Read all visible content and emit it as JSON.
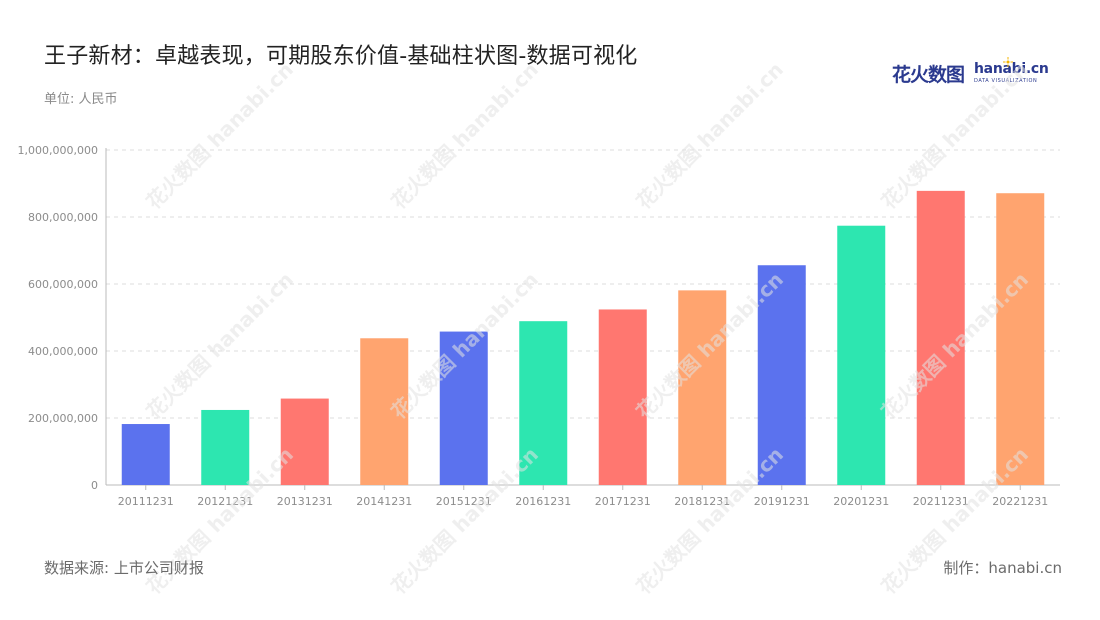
{
  "title": "王子新材：卓越表现，可期股东价值-基础柱状图-数据可视化",
  "unit_label": "单位: 人民币",
  "logo": {
    "cn": "花火数图",
    "en": "hanabi.cn",
    "sub": "DATA VISUALIZATION"
  },
  "source": "数据来源: 上市公司财报",
  "credit": "制作：hanabi.cn",
  "watermark": "花火数图 hanabi.cn",
  "colors": {
    "blue": "#5b72ee",
    "green": "#2de6b0",
    "red": "#ff7770",
    "orange": "#ffa46f",
    "accent": "#2b3a8f"
  },
  "chart_data": {
    "type": "bar",
    "title": "王子新材：卓越表现，可期股东价值-基础柱状图-数据可视化",
    "xlabel": "",
    "ylabel": "",
    "unit": "单位: 人民币",
    "categories": [
      "20111231",
      "20121231",
      "20131231",
      "20141231",
      "20151231",
      "20161231",
      "20171231",
      "20181231",
      "20191231",
      "20201231",
      "20211231",
      "20221231"
    ],
    "values": [
      182000000,
      224000000,
      258000000,
      438000000,
      458000000,
      489000000,
      524000000,
      581000000,
      656000000,
      774000000,
      878000000,
      871000000
    ],
    "bar_colors": [
      "#5b72ee",
      "#2de6b0",
      "#ff7770",
      "#ffa46f",
      "#5b72ee",
      "#2de6b0",
      "#ff7770",
      "#ffa46f",
      "#5b72ee",
      "#2de6b0",
      "#ff7770",
      "#ffa46f"
    ],
    "ylim": [
      0,
      1000000000
    ],
    "yticks": [
      0,
      200000000,
      400000000,
      600000000,
      800000000,
      1000000000
    ],
    "ytick_labels": [
      "0",
      "200,000,000",
      "400,000,000",
      "600,000,000",
      "800,000,000",
      "1,000,000,000"
    ],
    "grid": true,
    "legend": "none"
  }
}
